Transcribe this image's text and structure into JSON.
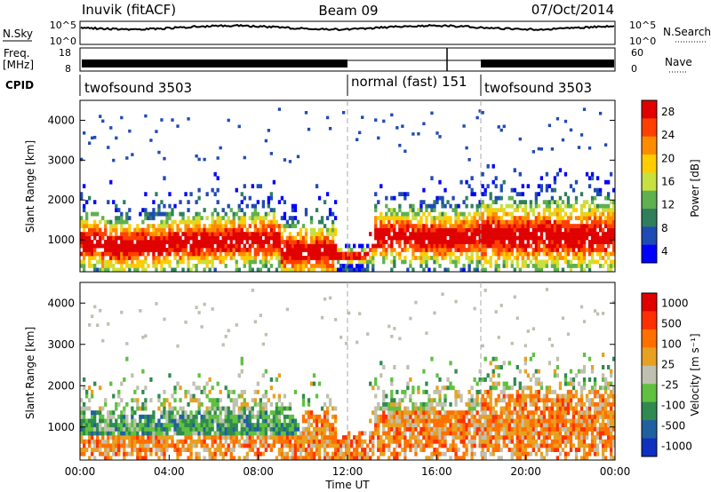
{
  "header": {
    "station": "Inuvik (fitACF)",
    "beam": "Beam 09",
    "date": "07/Oct/2014"
  },
  "top_panel": {
    "nsky_label": "N.Sky",
    "nsearch_label": "N.Search",
    "left_ticks": [
      "10^5",
      "10^0"
    ],
    "right_ticks": [
      "10^5",
      "10^0"
    ],
    "freq_label_1": "Freq.",
    "freq_label_2": "[MHz]",
    "freq_ticks": [
      "18",
      "8"
    ],
    "nave_label": "Nave",
    "nave_ticks": [
      "60",
      "0"
    ],
    "cpid_label": "CPID",
    "cpid_segments": [
      {
        "label": "twofsound 3503",
        "start_h": 0,
        "end_h": 12
      },
      {
        "label": "normal (fast) 151",
        "start_h": 12,
        "end_h": 18
      },
      {
        "label": "twofsound 3503",
        "start_h": 18,
        "end_h": 24
      }
    ]
  },
  "x_axis": {
    "label": "Time UT",
    "ticks": [
      "00:00",
      "04:00",
      "08:00",
      "12:00",
      "16:00",
      "20:00",
      "00:00"
    ]
  },
  "colors": {
    "power_scale": [
      "#0000ff",
      "#1f4bb4",
      "#2f7f5f",
      "#5fb04f",
      "#c8e040",
      "#ffcc00",
      "#ff8c00",
      "#ff4000",
      "#e00000"
    ],
    "velocity_scale": [
      "#1030c0",
      "#2060a0",
      "#2f8a50",
      "#60c040",
      "#c0c0b0",
      "#e8a020",
      "#ff7000",
      "#ff3000",
      "#e00000"
    ]
  },
  "chart_data": [
    {
      "type": "heatmap",
      "name": "power",
      "ylabel": "Slant Range [km]",
      "yticks": [
        "1000",
        "2000",
        "3000",
        "4000"
      ],
      "ylim": [
        200,
        4500
      ],
      "xlim_hours": [
        0,
        24
      ],
      "colorbar_label": "Power [dB]",
      "colorbar_ticks": [
        "4",
        "8",
        "12",
        "16",
        "20",
        "24",
        "28"
      ],
      "colorbar_range": [
        0,
        30
      ]
    },
    {
      "type": "heatmap",
      "name": "velocity",
      "ylabel": "Slant Range [km]",
      "yticks": [
        "1000",
        "2000",
        "3000",
        "4000"
      ],
      "ylim": [
        200,
        4500
      ],
      "xlim_hours": [
        0,
        24
      ],
      "colorbar_label": "Velocity [m s⁻¹]",
      "colorbar_ticks": [
        "1000",
        "500",
        "100",
        "25",
        "-25",
        "-100",
        "-500",
        "-1000"
      ]
    }
  ]
}
